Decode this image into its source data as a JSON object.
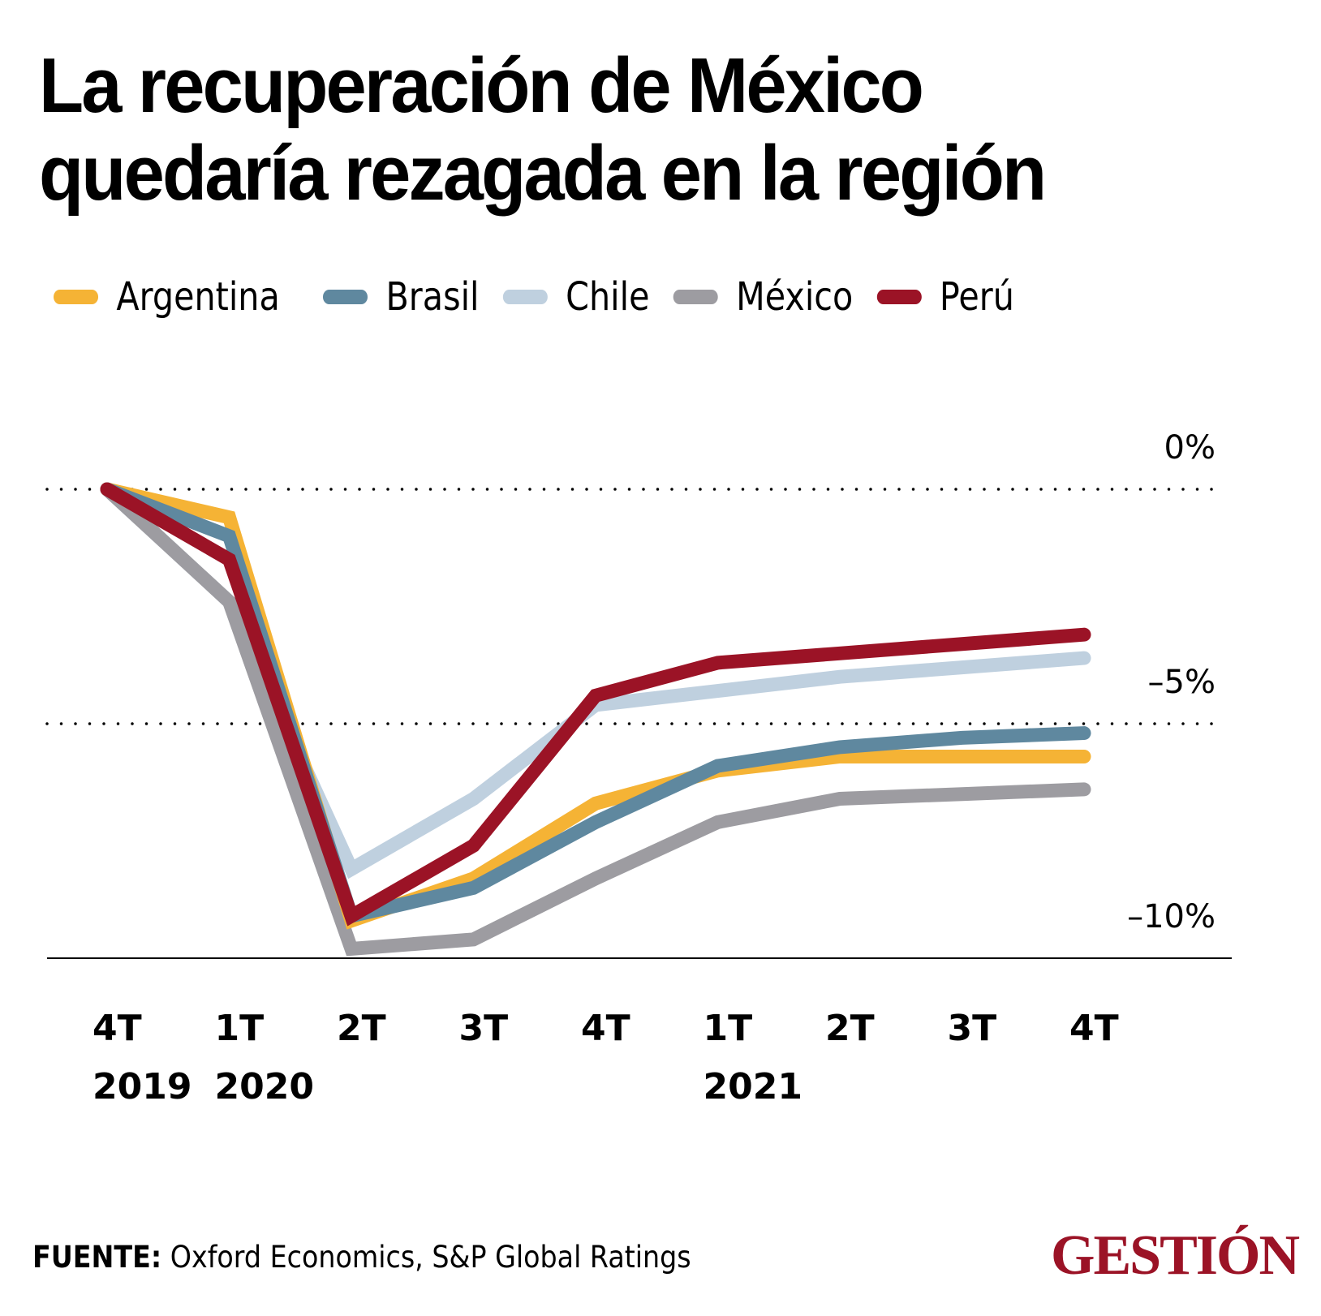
{
  "header": {
    "title_line1": "La recuperación de México",
    "title_line2": "quedaría rezagada en la región"
  },
  "footer": {
    "source_label": "FUENTE:",
    "source_text": "Oxford Economics, S&P Global Ratings",
    "brand": "GESTIÓN",
    "brand_color": "#9b1326"
  },
  "chart_data": {
    "type": "line",
    "title": "La recuperación de México quedaría rezagada en la región",
    "xlabel": "",
    "ylabel": "",
    "x": [
      "4T 2019",
      "1T 2020",
      "2T 2020",
      "3T 2020",
      "4T 2020",
      "1T 2021",
      "2T 2021",
      "3T 2021",
      "4T 2021"
    ],
    "x_tick_quarters": [
      "4T",
      "1T",
      "2T",
      "3T",
      "4T",
      "1T",
      "2T",
      "3T",
      "4T"
    ],
    "x_tick_years": [
      "2019",
      "2020",
      "",
      "",
      "",
      "2021",
      "",
      "",
      ""
    ],
    "y_ticks": [
      0,
      -5,
      -10
    ],
    "y_tick_labels": [
      "0%",
      "–5%",
      "–10%"
    ],
    "ylim": [
      -10,
      0
    ],
    "grid": "dotted at 0% and -5%",
    "legend_position": "top",
    "series": [
      {
        "name": "Argentina",
        "color": "#f5b335",
        "values": [
          0,
          -0.6,
          -9.2,
          -8.3,
          -6.7,
          -6.0,
          -5.7,
          -5.7,
          -5.7
        ]
      },
      {
        "name": "Brasil",
        "color": "#5f889f",
        "values": [
          0,
          -1.0,
          -9.1,
          -8.5,
          -7.1,
          -5.9,
          -5.5,
          -5.3,
          -5.2
        ]
      },
      {
        "name": "Chile",
        "color": "#bfd0df",
        "values": [
          0,
          -2.4,
          -8.1,
          -6.6,
          -4.6,
          -4.3,
          -4.0,
          -3.8,
          -3.6
        ]
      },
      {
        "name": "México",
        "color": "#9d9ca1",
        "values": [
          0,
          -2.4,
          -9.8,
          -9.6,
          -8.3,
          -7.1,
          -6.6,
          -6.5,
          -6.4
        ]
      },
      {
        "name": "Perú",
        "color": "#9b1326",
        "values": [
          0,
          -1.5,
          -9.1,
          -7.6,
          -4.4,
          -3.7,
          -3.5,
          -3.3,
          -3.1
        ]
      }
    ]
  }
}
